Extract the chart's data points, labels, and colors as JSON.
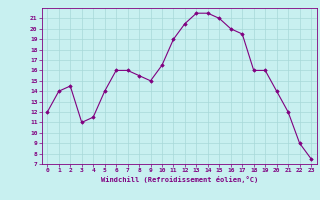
{
  "x": [
    0,
    1,
    2,
    3,
    4,
    5,
    6,
    7,
    8,
    9,
    10,
    11,
    12,
    13,
    14,
    15,
    16,
    17,
    18,
    19,
    20,
    21,
    22,
    23
  ],
  "y": [
    12,
    14,
    14.5,
    11,
    11.5,
    14,
    16,
    16,
    15.5,
    15,
    16.5,
    19,
    20.5,
    21.5,
    21.5,
    21,
    20,
    19.5,
    16,
    16,
    14,
    12,
    9,
    7.5
  ],
  "line_color": "#800080",
  "marker_color": "#800080",
  "bg_color": "#c8f0f0",
  "grid_color": "#a8d8d8",
  "xlabel": "Windchill (Refroidissement éolien,°C)",
  "ylim": [
    7,
    22
  ],
  "xlim": [
    -0.5,
    23.5
  ],
  "yticks": [
    7,
    8,
    9,
    10,
    11,
    12,
    13,
    14,
    15,
    16,
    17,
    18,
    19,
    20,
    21
  ],
  "xticks": [
    0,
    1,
    2,
    3,
    4,
    5,
    6,
    7,
    8,
    9,
    10,
    11,
    12,
    13,
    14,
    15,
    16,
    17,
    18,
    19,
    20,
    21,
    22,
    23
  ]
}
